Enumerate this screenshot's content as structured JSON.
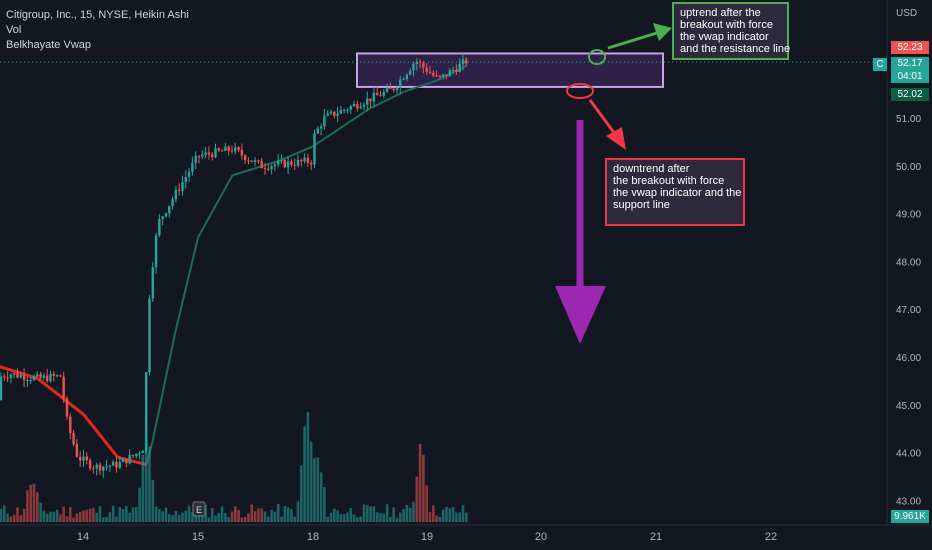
{
  "legend": {
    "symbol_line": "Citigroup, Inc., 15, NYSE, Heikin Ashi",
    "vol_label": "Vol",
    "indicator_label": "Belkhayate Vwap"
  },
  "axis": {
    "unit": "USD",
    "price_ticks": [
      "51.00",
      "50.00",
      "49.00",
      "48.00",
      "47.00",
      "46.00",
      "45.00",
      "44.00",
      "43.00"
    ],
    "date_ticks": [
      "14",
      "15",
      "18",
      "19",
      "20",
      "21",
      "22"
    ],
    "price_tag_top": "52.23",
    "price_tag_current": "52.17",
    "price_tag_countdown": "04:01",
    "price_tag_low": "52.02",
    "volume_tag": "9.961K",
    "badge": "C",
    "earnings_marker": "E"
  },
  "annotations": {
    "uptrend_lines": [
      "uptrend after the",
      "breakout with force",
      "the vwap indicator",
      "and the resistance line"
    ],
    "downtrend_lines": [
      "downtrend after",
      "the breakout with force",
      "the vwap indicator and the",
      "support line"
    ]
  },
  "colors": {
    "background": "#131722",
    "bull": "#26a69a",
    "bear": "#ef5350",
    "vwap_up": "#1e6b55",
    "vwap_down": "#e0281e",
    "zone": "#c8a2e8",
    "up_arrow": "#4caf50",
    "down_arrow": "#f23645",
    "big_arrow": "#9c27b0"
  },
  "chart_data": {
    "type": "candlestick",
    "ylim": [
      42.8,
      53.1
    ],
    "x_day_ticks": [
      "14",
      "15",
      "18",
      "19",
      "20",
      "21",
      "22"
    ],
    "price_path": [
      [
        0.0,
        45.1
      ],
      [
        0.15,
        45.5
      ],
      [
        0.35,
        45.65
      ],
      [
        0.6,
        45.55
      ],
      [
        0.8,
        45.6
      ],
      [
        0.86,
        44.6
      ],
      [
        0.95,
        43.9
      ],
      [
        1.1,
        43.7
      ],
      [
        1.3,
        43.75
      ],
      [
        1.45,
        43.95
      ],
      [
        1.52,
        44.1
      ],
      [
        1.58,
        47.5
      ],
      [
        1.65,
        48.8
      ],
      [
        1.8,
        49.4
      ],
      [
        2.0,
        50.2
      ],
      [
        2.3,
        50.35
      ],
      [
        2.55,
        50.0
      ],
      [
        3.0,
        50.1
      ],
      [
        3.01,
        50.6
      ],
      [
        3.1,
        51.0
      ],
      [
        3.4,
        51.3
      ],
      [
        3.7,
        51.6
      ],
      [
        3.9,
        52.2
      ],
      [
        4.1,
        51.8
      ],
      [
        4.35,
        52.2
      ]
    ],
    "vwap": [
      [
        0.0,
        46.0
      ],
      [
        0.6,
        45.55
      ],
      [
        1.0,
        44.8
      ],
      [
        1.3,
        43.9
      ],
      [
        1.55,
        43.75
      ],
      [
        1.6,
        44.2
      ],
      [
        1.8,
        46.5
      ],
      [
        2.0,
        48.5
      ],
      [
        2.3,
        49.8
      ],
      [
        2.7,
        50.1
      ],
      [
        3.0,
        50.4
      ],
      [
        3.5,
        51.2
      ],
      [
        3.8,
        51.55
      ],
      [
        4.1,
        51.8
      ],
      [
        4.35,
        52.1
      ]
    ],
    "volume_spikes": [
      [
        0.55,
        15
      ],
      [
        1.55,
        40
      ],
      [
        2.95,
        50
      ],
      [
        3.05,
        25
      ],
      [
        3.95,
        35
      ]
    ],
    "resistance_zone": [
      51.65,
      52.35
    ],
    "last_close": 52.17
  }
}
